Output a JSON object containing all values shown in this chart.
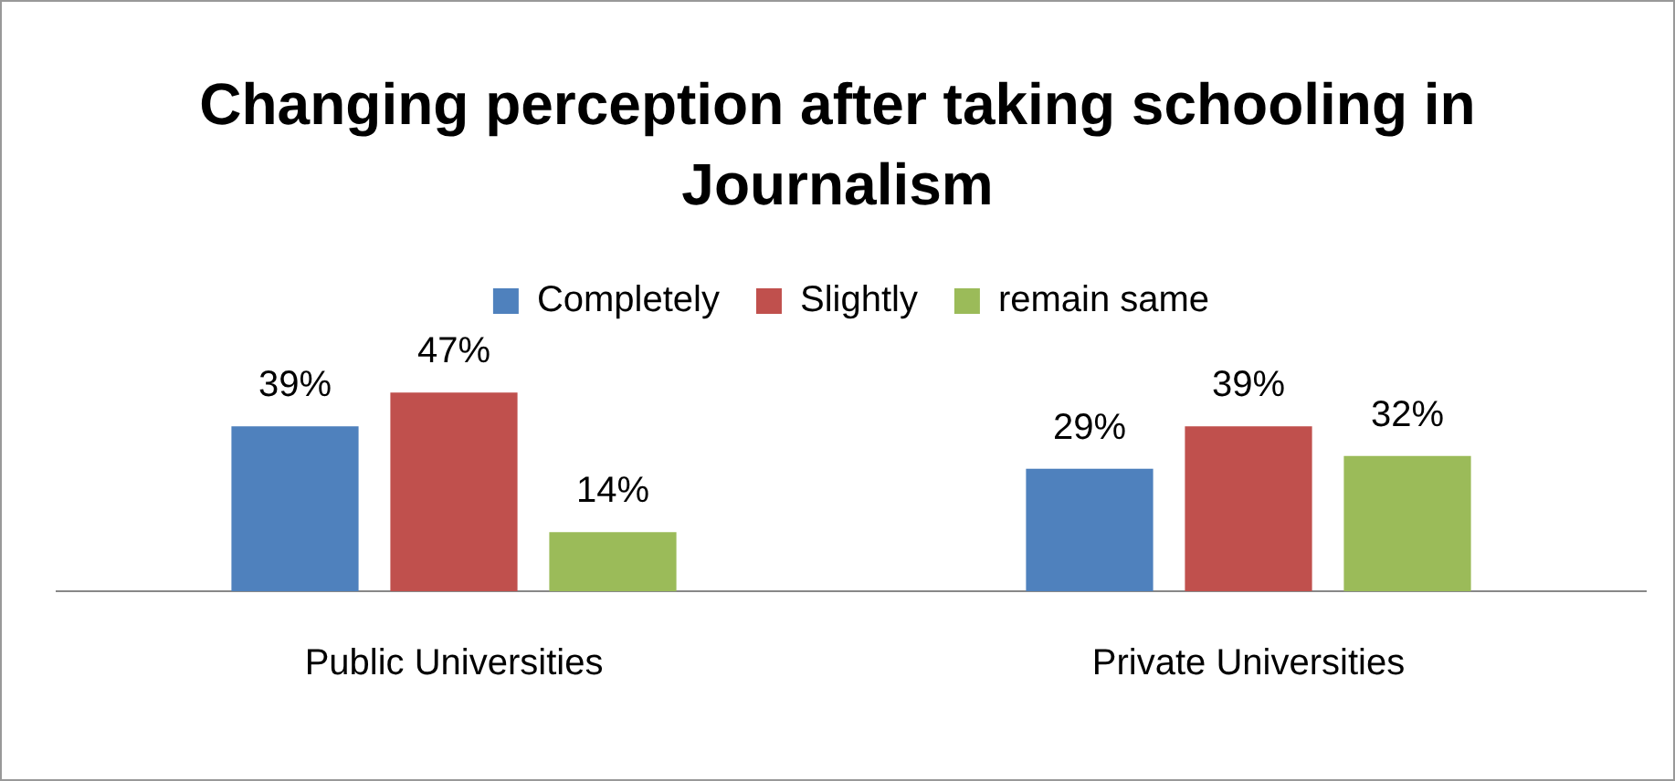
{
  "chart_data": {
    "type": "bar",
    "title": "Changing perception after taking schooling in Journalism",
    "categories": [
      "Public Universities",
      "Private Universities"
    ],
    "series": [
      {
        "name": "Completely",
        "color": "#4f81bd",
        "values": [
          39,
          29
        ],
        "value_labels": [
          "39%",
          "29%"
        ]
      },
      {
        "name": "Slightly",
        "color": "#c0504d",
        "values": [
          47,
          39
        ],
        "value_labels": [
          "47%",
          "39%"
        ]
      },
      {
        "name": "remain same",
        "color": "#9bbb59",
        "values": [
          14,
          32
        ],
        "value_labels": [
          "14%",
          "32%"
        ]
      }
    ],
    "legend": "top",
    "grid": false
  }
}
